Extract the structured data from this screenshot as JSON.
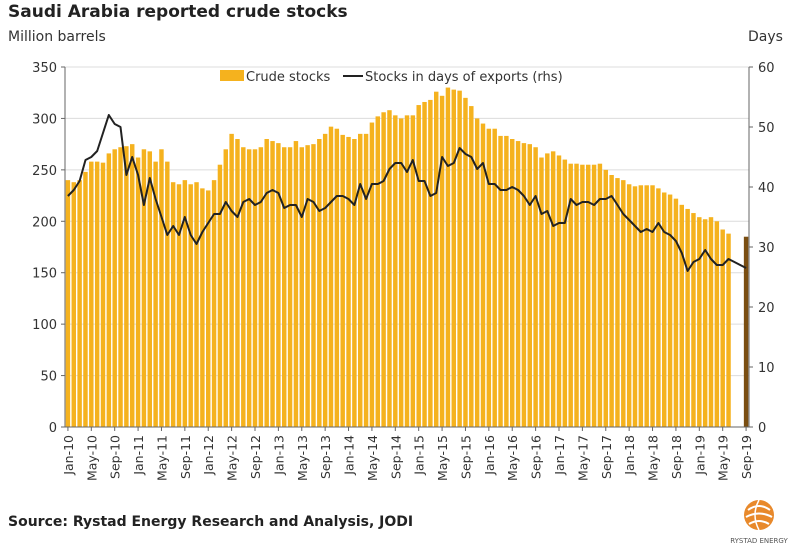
{
  "chart_data": {
    "type": "bar+line",
    "title": "Saudi Arabia reported crude stocks",
    "ylabel": "Million barrels",
    "y2label": "Days",
    "ylim": [
      0,
      350
    ],
    "y2lim": [
      0,
      60
    ],
    "yticks": [
      0,
      50,
      100,
      150,
      200,
      250,
      300,
      350
    ],
    "y2ticks": [
      0,
      10,
      20,
      30,
      40,
      50,
      60
    ],
    "grid": true,
    "legend": "top-center",
    "xtick_labels": [
      "Jan-10",
      "May-10",
      "Sep-10",
      "Jan-11",
      "May-11",
      "Sep-11",
      "Jan-12",
      "May-12",
      "Sep-12",
      "Jan-13",
      "May-13",
      "Sep-13",
      "Jan-14",
      "May-14",
      "Sep-14",
      "Jan-15",
      "May-15",
      "Sep-15",
      "Jan-16",
      "May-16",
      "Sep-16",
      "Jan-17",
      "May-17",
      "Sep-17",
      "Jan-18",
      "May-18",
      "Sep-18",
      "Jan-19",
      "May-19",
      "Sep-19"
    ],
    "x_start": "Jan-10",
    "x_end": "Sep-19",
    "series": [
      {
        "name": "Crude stocks",
        "type": "bar",
        "axis": "left",
        "color": "#F5B21E",
        "highlight_last_color": "#7A4E12",
        "values": [
          240,
          238,
          240,
          248,
          258,
          258,
          257,
          266,
          270,
          272,
          273,
          275,
          262,
          270,
          268,
          258,
          270,
          258,
          238,
          236,
          240,
          236,
          238,
          232,
          230,
          240,
          255,
          270,
          285,
          280,
          272,
          270,
          270,
          272,
          280,
          278,
          276,
          272,
          272,
          278,
          272,
          274,
          275,
          280,
          285,
          292,
          290,
          284,
          282,
          280,
          285,
          285,
          296,
          302,
          306,
          308,
          303,
          300,
          303,
          303,
          313,
          316,
          318,
          326,
          322,
          330,
          328,
          327,
          320,
          312,
          300,
          295,
          290,
          290,
          283,
          283,
          280,
          278,
          276,
          275,
          272,
          262,
          266,
          268,
          264,
          260,
          256,
          256,
          255,
          255,
          255,
          256,
          250,
          245,
          242,
          240,
          236,
          234,
          235,
          235,
          235,
          232,
          228,
          226,
          222,
          216,
          212,
          208,
          204,
          202,
          204,
          200,
          192,
          188,
          null,
          null,
          185
        ]
      },
      {
        "name": "Stocks in days of exports (rhs)",
        "type": "line",
        "axis": "right",
        "color": "#222222",
        "values": [
          38.5,
          39.5,
          41,
          44.5,
          45,
          46,
          49,
          52,
          50.5,
          50,
          42,
          45,
          42,
          37,
          41.5,
          38,
          35,
          32,
          33.5,
          32,
          35,
          32,
          30.5,
          32.5,
          34,
          35.5,
          35.5,
          37.5,
          36,
          35,
          37.5,
          38,
          37,
          37.5,
          39,
          39.5,
          39,
          36.5,
          37,
          37,
          35,
          38,
          37.5,
          36,
          36.5,
          37.5,
          38.5,
          38.5,
          38,
          37,
          40.5,
          38,
          40.5,
          40.5,
          41,
          43,
          44,
          44,
          42.5,
          44.5,
          41,
          41,
          38.5,
          39,
          45,
          43.5,
          44,
          46.5,
          45.5,
          45,
          43,
          44,
          40.5,
          40.5,
          39.5,
          39.5,
          40,
          39.5,
          38.5,
          37,
          38.5,
          35.5,
          36,
          33.5,
          34,
          34,
          38,
          37,
          37.5,
          37.5,
          37,
          38,
          38,
          38.5,
          37,
          35.5,
          34.5,
          33.5,
          32.5,
          33,
          32.5,
          34,
          32.5,
          32,
          31,
          29,
          26,
          27.5,
          28,
          29.5,
          28,
          27,
          27,
          28,
          27.5,
          27,
          26.5
        ]
      }
    ]
  },
  "source": "Source: Rystad Energy Research and Analysis, JODI",
  "logo_text": "RYSTAD ENERGY"
}
